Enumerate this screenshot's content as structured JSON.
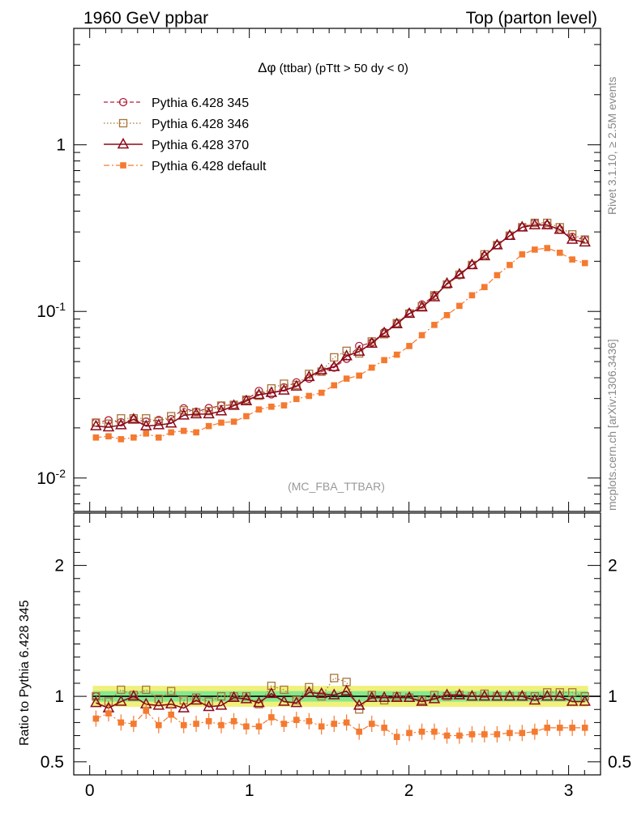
{
  "header": {
    "left": "1960 GeV ppbar",
    "right": "Top (parton level)"
  },
  "plot_title": {
    "symbol": "Δφ",
    "text": " (ttbar) (pTtt > 50 dy < 0)"
  },
  "side_labels": {
    "rivet": "Rivet 3.1.10, ≥ 2.5M events",
    "mcplots": "mcplots.cern.ch [arXiv:1306.3436]"
  },
  "watermark": "(MC_FBA_TTBAR)",
  "ratio_ylabel": "Ratio to Pythia 6.428 345",
  "colors": {
    "s345": "#b3203b",
    "s346": "#a8743a",
    "s370": "#8b0a1a",
    "default": "#f47a30",
    "band_yellow": "#f0f07a",
    "band_green": "#86e88c"
  },
  "chart_data": [
    {
      "type": "line",
      "panel": "main",
      "title": "Δφ (ttbar) (pTtt > 50 dy < 0)",
      "xlim": [
        -0.1,
        3.2
      ],
      "ylim": [
        0.0063,
        5.0
      ],
      "yscale": "log",
      "ytick_labels": [
        "10^-2",
        "10^-1",
        "1"
      ],
      "xtick_labels": [
        "0",
        "1",
        "2",
        "3"
      ],
      "legend_position": "top-left",
      "x": [
        0.039,
        0.118,
        0.196,
        0.275,
        0.353,
        0.432,
        0.51,
        0.589,
        0.667,
        0.746,
        0.824,
        0.903,
        0.981,
        1.06,
        1.138,
        1.217,
        1.295,
        1.374,
        1.452,
        1.531,
        1.609,
        1.688,
        1.767,
        1.845,
        1.924,
        2.002,
        2.081,
        2.159,
        2.238,
        2.316,
        2.395,
        2.473,
        2.552,
        2.631,
        2.709,
        2.788,
        2.866,
        2.945,
        3.023,
        3.102
      ],
      "series": [
        {
          "name": "Pythia 6.428 345",
          "marker": "open-circle",
          "line": "dashed",
          "values": [
            0.0215,
            0.0222,
            0.0216,
            0.0225,
            0.0218,
            0.0223,
            0.0226,
            0.0262,
            0.025,
            0.0263,
            0.0272,
            0.0275,
            0.0295,
            0.0333,
            0.0318,
            0.035,
            0.0375,
            0.0395,
            0.0435,
            0.046,
            0.052,
            0.062,
            0.065,
            0.075,
            0.085,
            0.098,
            0.11,
            0.124,
            0.145,
            0.165,
            0.19,
            0.215,
            0.25,
            0.285,
            0.32,
            0.34,
            0.33,
            0.31,
            0.28,
            0.27
          ]
        },
        {
          "name": "Pythia 6.428 346",
          "marker": "open-square",
          "line": "dotted",
          "values": [
            0.0215,
            0.0212,
            0.0228,
            0.0228,
            0.0228,
            0.0219,
            0.0235,
            0.0255,
            0.0248,
            0.0252,
            0.0272,
            0.0275,
            0.0295,
            0.0312,
            0.0345,
            0.0368,
            0.0362,
            0.0422,
            0.0435,
            0.053,
            0.058,
            0.056,
            0.066,
            0.073,
            0.085,
            0.097,
            0.107,
            0.125,
            0.145,
            0.166,
            0.19,
            0.22,
            0.25,
            0.285,
            0.32,
            0.34,
            0.34,
            0.32,
            0.29,
            0.27
          ]
        },
        {
          "name": "Pythia 6.428 370",
          "marker": "open-triangle",
          "line": "solid",
          "values": [
            0.0205,
            0.0202,
            0.0208,
            0.0225,
            0.0205,
            0.0208,
            0.0213,
            0.0238,
            0.0242,
            0.0242,
            0.0252,
            0.0272,
            0.029,
            0.0316,
            0.0325,
            0.0336,
            0.0355,
            0.0405,
            0.0445,
            0.0465,
            0.054,
            0.0575,
            0.0642,
            0.0742,
            0.084,
            0.097,
            0.106,
            0.122,
            0.147,
            0.167,
            0.19,
            0.215,
            0.25,
            0.285,
            0.32,
            0.33,
            0.33,
            0.31,
            0.27,
            0.26
          ]
        },
        {
          "name": "Pythia 6.428 default",
          "marker": "filled-square",
          "line": "dash-dot",
          "values": [
            0.0175,
            0.0178,
            0.0171,
            0.0175,
            0.0185,
            0.0175,
            0.0188,
            0.0192,
            0.0188,
            0.0205,
            0.0215,
            0.0218,
            0.0235,
            0.0258,
            0.0268,
            0.0273,
            0.0298,
            0.0311,
            0.0325,
            0.036,
            0.0395,
            0.0412,
            0.046,
            0.051,
            0.055,
            0.062,
            0.072,
            0.083,
            0.095,
            0.108,
            0.125,
            0.14,
            0.165,
            0.19,
            0.22,
            0.235,
            0.24,
            0.225,
            0.205,
            0.195
          ]
        }
      ]
    },
    {
      "type": "line",
      "panel": "ratio",
      "ylabel": "Ratio to Pythia 6.428 345",
      "xlim": [
        -0.1,
        3.2
      ],
      "ylim": [
        0.4,
        2.4
      ],
      "ytick_labels": [
        "0.5",
        "1",
        "2"
      ],
      "xtick_labels": [
        "0",
        "1",
        "2",
        "3"
      ],
      "reference": 1.0,
      "band_green": [
        0.96,
        1.04
      ],
      "band_yellow": [
        0.92,
        1.08
      ],
      "series": [
        {
          "name": "Pythia 6.428 346",
          "values": [
            1.0,
            0.96,
            1.05,
            1.01,
            1.05,
            0.98,
            1.04,
            0.97,
            0.99,
            0.96,
            1.0,
            1.0,
            1.0,
            0.94,
            1.08,
            1.05,
            0.97,
            1.07,
            1.0,
            1.14,
            1.11,
            0.9,
            1.01,
            0.97,
            1.0,
            0.99,
            0.97,
            1.01,
            1.0,
            1.01,
            1.0,
            1.02,
            1.0,
            1.0,
            1.0,
            1.0,
            1.03,
            1.03,
            1.03,
            1.0
          ]
        },
        {
          "name": "Pythia 6.428 370",
          "values": [
            0.95,
            0.91,
            0.96,
            1.0,
            0.94,
            0.93,
            0.94,
            0.91,
            0.97,
            0.92,
            0.93,
            0.99,
            0.98,
            0.95,
            1.02,
            0.96,
            0.95,
            1.03,
            1.02,
            1.01,
            1.04,
            0.93,
            0.99,
            0.99,
            0.99,
            0.99,
            0.96,
            0.98,
            1.01,
            1.01,
            1.0,
            1.0,
            1.0,
            1.0,
            1.0,
            0.97,
            1.0,
            1.0,
            0.96,
            0.96
          ]
        },
        {
          "name": "Pythia 6.428 default",
          "values": [
            0.83,
            0.87,
            0.8,
            0.79,
            0.89,
            0.78,
            0.86,
            0.78,
            0.79,
            0.81,
            0.78,
            0.81,
            0.77,
            0.77,
            0.84,
            0.79,
            0.82,
            0.81,
            0.77,
            0.79,
            0.8,
            0.73,
            0.79,
            0.76,
            0.69,
            0.72,
            0.73,
            0.73,
            0.7,
            0.7,
            0.71,
            0.71,
            0.71,
            0.72,
            0.72,
            0.73,
            0.76,
            0.76,
            0.76,
            0.76
          ]
        }
      ]
    }
  ]
}
